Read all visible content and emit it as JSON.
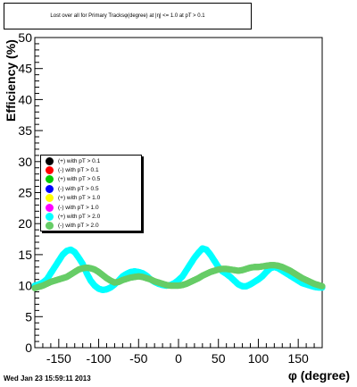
{
  "chart_data": {
    "type": "scatter",
    "title": "Lost over all for Primary Tracksφ(degree) at |η| <= 1.0 at pT > 0.1",
    "xlabel": "φ (degree)",
    "ylabel": "Efficiency (%)",
    "xlim": [
      -180,
      180
    ],
    "ylim": [
      0,
      50
    ],
    "x_ticks": [
      -150,
      -100,
      -50,
      0,
      50,
      100,
      150
    ],
    "y_ticks": [
      0,
      5,
      10,
      15,
      20,
      25,
      30,
      35,
      40,
      45,
      50
    ],
    "grid": false,
    "legend_position": "middle-left",
    "series": [
      {
        "name": "(+) with pT > 0.1",
        "color": "#000000",
        "values": []
      },
      {
        "name": "(-) with pT > 0.1",
        "color": "#ff0000",
        "values": []
      },
      {
        "name": "(+) with pT > 0.5",
        "color": "#00cc00",
        "values": []
      },
      {
        "name": "(-) with pT > 0.5",
        "color": "#0000ff",
        "values": []
      },
      {
        "name": "(+) with pT > 1.0",
        "color": "#ffff00",
        "values": []
      },
      {
        "name": "(-) with pT > 1.0",
        "color": "#ff00ff",
        "values": []
      },
      {
        "name": "(+) with pT > 2.0",
        "color": "#00ffff",
        "x": [
          -180,
          -175,
          -170,
          -165,
          -160,
          -155,
          -150,
          -145,
          -140,
          -135,
          -130,
          -125,
          -120,
          -115,
          -110,
          -105,
          -100,
          -95,
          -90,
          -85,
          -80,
          -75,
          -70,
          -65,
          -60,
          -55,
          -50,
          -45,
          -40,
          -35,
          -30,
          -25,
          -20,
          -15,
          -10,
          -5,
          0,
          5,
          10,
          15,
          20,
          25,
          30,
          35,
          40,
          45,
          50,
          55,
          60,
          65,
          70,
          75,
          80,
          85,
          90,
          95,
          100,
          105,
          110,
          115,
          120,
          125,
          130,
          135,
          140,
          145,
          150,
          155,
          160,
          165,
          170,
          175,
          180
        ],
        "values": [
          10.0,
          10.2,
          10.5,
          11.0,
          12.0,
          13.0,
          14.0,
          15.0,
          15.6,
          15.8,
          15.4,
          14.5,
          13.5,
          12.0,
          10.8,
          10.0,
          9.5,
          9.3,
          9.4,
          9.7,
          10.2,
          10.8,
          11.5,
          11.9,
          12.2,
          12.3,
          12.2,
          12.0,
          11.6,
          11.0,
          10.6,
          10.3,
          10.1,
          10.0,
          10.1,
          10.4,
          10.9,
          11.5,
          12.5,
          13.5,
          14.5,
          15.3,
          16.0,
          15.8,
          15.0,
          14.0,
          13.0,
          12.3,
          11.9,
          11.4,
          10.8,
          10.2,
          9.9,
          9.9,
          10.2,
          10.6,
          11.0,
          11.5,
          12.2,
          12.8,
          13.0,
          12.8,
          12.4,
          12.0,
          11.6,
          11.2,
          10.8,
          10.4,
          10.2,
          10.0,
          9.8,
          9.7,
          9.7
        ]
      },
      {
        "name": "(-) with pT > 2.0",
        "color": "#66cc66",
        "x": [
          -180,
          -175,
          -170,
          -165,
          -160,
          -155,
          -150,
          -145,
          -140,
          -135,
          -130,
          -125,
          -120,
          -115,
          -110,
          -105,
          -100,
          -95,
          -90,
          -85,
          -80,
          -75,
          -70,
          -65,
          -60,
          -55,
          -50,
          -45,
          -40,
          -35,
          -30,
          -25,
          -20,
          -15,
          -10,
          -5,
          0,
          5,
          10,
          15,
          20,
          25,
          30,
          35,
          40,
          45,
          50,
          55,
          60,
          65,
          70,
          75,
          80,
          85,
          90,
          95,
          100,
          105,
          110,
          115,
          120,
          125,
          130,
          135,
          140,
          145,
          150,
          155,
          160,
          165,
          170,
          175,
          180
        ],
        "values": [
          9.6,
          9.8,
          10.0,
          10.3,
          10.6,
          10.8,
          11.0,
          11.2,
          11.4,
          11.8,
          12.2,
          12.6,
          12.8,
          12.9,
          12.8,
          12.6,
          12.2,
          11.7,
          11.2,
          10.8,
          10.5,
          10.6,
          10.9,
          11.1,
          11.3,
          11.4,
          11.5,
          11.4,
          11.2,
          11.0,
          10.7,
          10.5,
          10.3,
          10.1,
          10.0,
          10.0,
          10.0,
          10.1,
          10.3,
          10.6,
          10.9,
          11.2,
          11.6,
          11.9,
          12.2,
          12.4,
          12.6,
          12.7,
          12.7,
          12.6,
          12.5,
          12.4,
          12.5,
          12.7,
          12.9,
          13.0,
          13.0,
          13.1,
          13.2,
          13.3,
          13.3,
          13.2,
          13.0,
          12.7,
          12.4,
          12.0,
          11.6,
          11.2,
          10.9,
          10.6,
          10.3,
          10.1,
          9.9
        ]
      }
    ]
  },
  "footer": {
    "timestamp": "Wed Jan 23 15:59:11 2013"
  }
}
